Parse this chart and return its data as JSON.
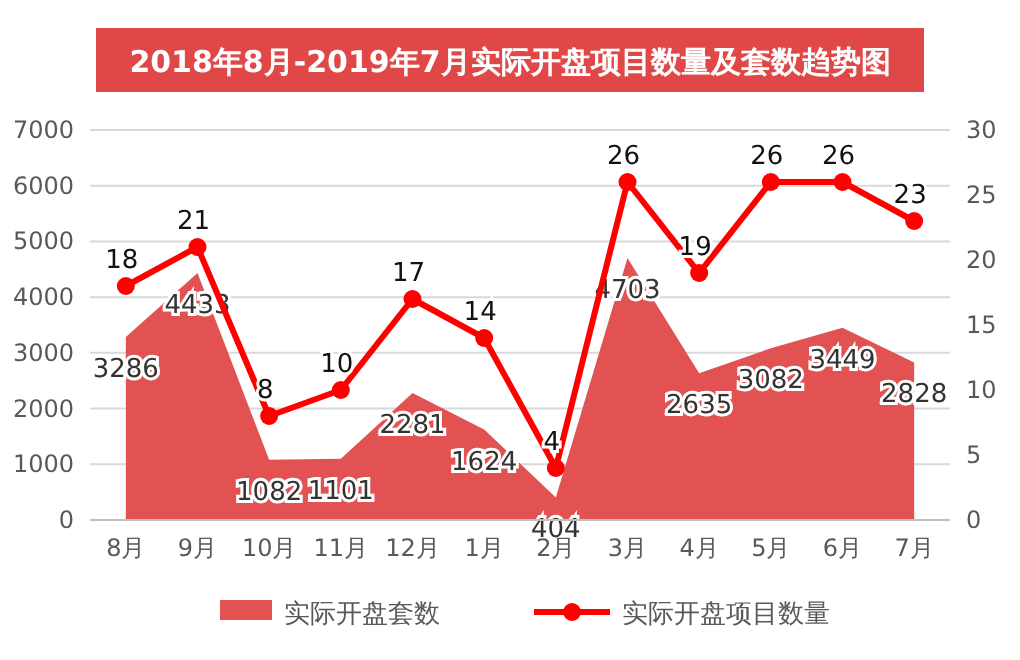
{
  "chart_data": {
    "type": "area",
    "title": "2018年8月-2019年7月实际开盘项目数量及套数趋势图",
    "categories": [
      "8月",
      "9月",
      "10月",
      "11月",
      "12月",
      "1月",
      "2月",
      "3月",
      "4月",
      "5月",
      "6月",
      "7月"
    ],
    "series": [
      {
        "name": "实际开盘套数",
        "color": "#e25252",
        "values": [
          3286,
          4433,
          1082,
          1101,
          2281,
          1624,
          404,
          4703,
          2635,
          3082,
          3449,
          2828
        ]
      },
      {
        "name": "实际开盘项目数量",
        "type": "line",
        "axis": "y2",
        "marker": "circle",
        "color": "#ff0000",
        "values": [
          18,
          21,
          8,
          10,
          17,
          14,
          4,
          26,
          19,
          26,
          26,
          23
        ]
      }
    ],
    "ylim": [
      0,
      7000
    ],
    "yticks": [
      0,
      1000,
      2000,
      3000,
      4000,
      5000,
      6000,
      7000
    ],
    "y2lim": [
      0,
      30
    ],
    "y2ticks": [
      0,
      5,
      10,
      15,
      20,
      25,
      30
    ],
    "grid": "y",
    "legend": "bottom",
    "line_style": "solid",
    "data_labels": true
  }
}
